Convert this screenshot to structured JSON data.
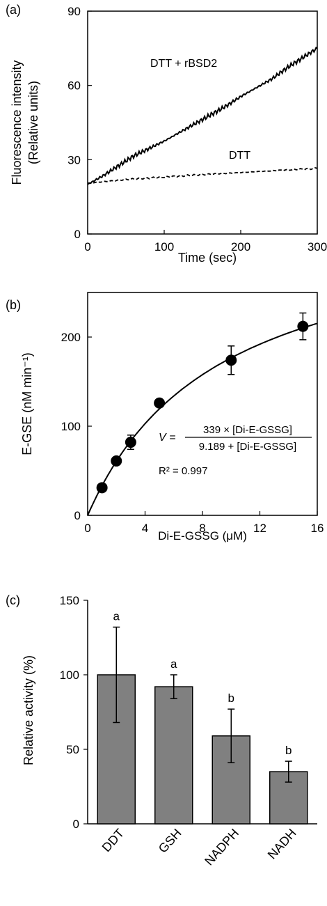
{
  "chart_data": [
    {
      "panel": "(a)",
      "type": "line",
      "xlabel": "Time (sec)",
      "ylabel_line1": "Fluorescence intensity",
      "ylabel_line2": "(Relative units)",
      "xlim": [
        0,
        300
      ],
      "ylim": [
        0,
        90
      ],
      "xticks": [
        "0",
        "100",
        "200",
        "300"
      ],
      "yticks": [
        "0",
        "30",
        "60",
        "90"
      ],
      "series": [
        {
          "name": "DTT + rBSD2",
          "style": "solid",
          "x": [
            0,
            20,
            40,
            60,
            80,
            100,
            120,
            140,
            160,
            180,
            200,
            220,
            240,
            260,
            280,
            300
          ],
          "y": [
            20,
            23.5,
            27.5,
            31.5,
            34.5,
            37.5,
            41,
            44.5,
            48,
            51.5,
            55.5,
            59,
            62.5,
            67,
            71,
            75
          ]
        },
        {
          "name": "DTT",
          "style": "dashed",
          "x": [
            0,
            50,
            100,
            150,
            200,
            250,
            300
          ],
          "y": [
            20.5,
            22,
            23,
            24,
            24.8,
            25.7,
            26.5
          ]
        }
      ]
    },
    {
      "panel": "(b)",
      "type": "scatter",
      "xlabel": "Di-E-GSSG (μM)",
      "ylabel": "E-GSE (nM min⁻¹)",
      "xlim": [
        0,
        16
      ],
      "ylim": [
        0,
        250
      ],
      "xticks": [
        "0",
        "4",
        "8",
        "12",
        "16"
      ],
      "yticks": [
        "0",
        "100",
        "200"
      ],
      "points": [
        {
          "x": 1,
          "y": 31,
          "err": 0
        },
        {
          "x": 2,
          "y": 61,
          "err": 0
        },
        {
          "x": 3,
          "y": 82,
          "err": 8
        },
        {
          "x": 5,
          "y": 126,
          "err": 0
        },
        {
          "x": 10,
          "y": 174,
          "err": 16
        },
        {
          "x": 15,
          "y": 212,
          "err": 15
        }
      ],
      "fit": {
        "vmax": 339,
        "km": 9.189
      },
      "equation_lhs": "V =",
      "equation_num": "339 × [Di-E-GSSG]",
      "equation_den": "9.189 + [Di-E-GSSG]",
      "r2": "R² = 0.997"
    },
    {
      "panel": "(c)",
      "type": "bar",
      "ylabel": "Relative activity (%)",
      "ylim": [
        0,
        150
      ],
      "yticks": [
        "0",
        "50",
        "100",
        "150"
      ],
      "categories": [
        "DDT",
        "GSH",
        "NADPH",
        "NADH"
      ],
      "values": [
        100,
        92,
        59,
        35
      ],
      "errors": [
        32,
        8,
        18,
        7
      ],
      "letters": [
        "a",
        "a",
        "b",
        "b"
      ],
      "bar_color": "#808080"
    }
  ]
}
